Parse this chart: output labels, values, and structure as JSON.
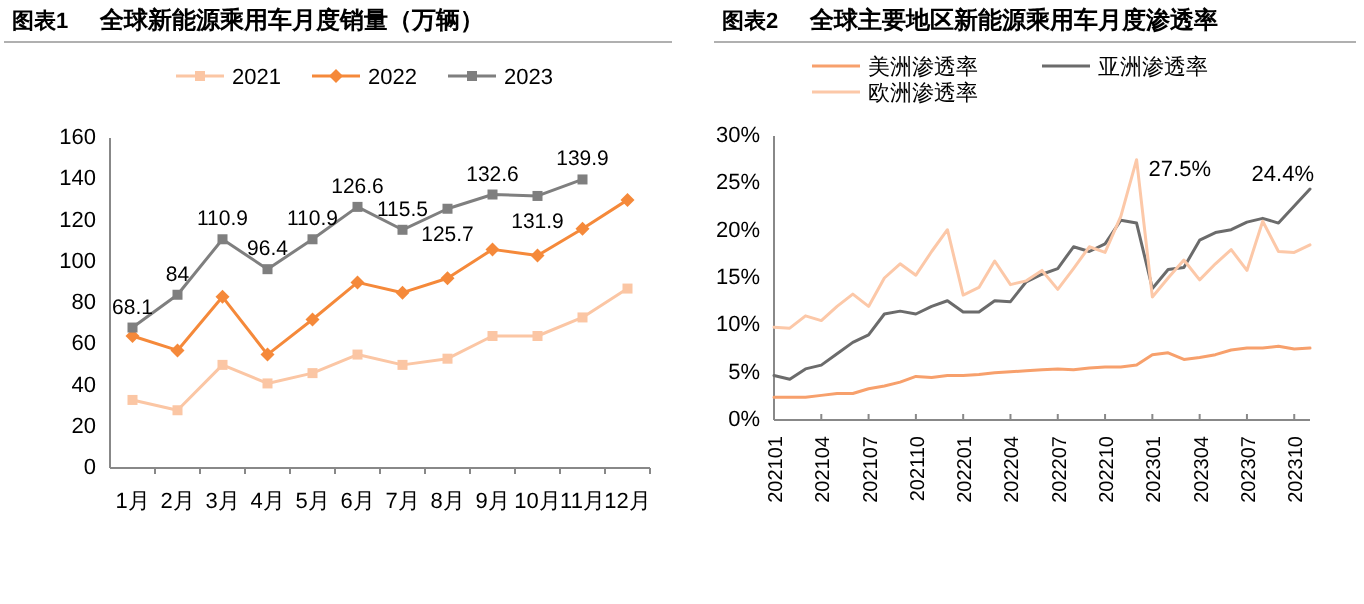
{
  "chart_data": [
    {
      "type": "line",
      "title": "全球新能源乘用车月度销量（万辆）",
      "annotations": [
        "图表1"
      ],
      "categories": [
        "1月",
        "2月",
        "3月",
        "4月",
        "5月",
        "6月",
        "7月",
        "8月",
        "9月",
        "10月",
        "11月",
        "12月"
      ],
      "ylim": [
        0,
        160
      ],
      "yticks": [
        0,
        20,
        40,
        60,
        80,
        100,
        120,
        140,
        160
      ],
      "legend": "top",
      "grid": false,
      "series": [
        {
          "name": "2021",
          "color": "#fbc6a4",
          "marker": "square",
          "values": [
            33,
            28,
            50,
            41,
            46,
            55,
            50,
            53,
            64,
            64,
            73,
            87
          ]
        },
        {
          "name": "2022",
          "color": "#f5893a",
          "marker": "diamond",
          "values": [
            64,
            57,
            83,
            55,
            72,
            90,
            85,
            92,
            106,
            103,
            116,
            130
          ]
        },
        {
          "name": "2023",
          "color": "#7f7f7f",
          "marker": "square",
          "values": [
            68.1,
            84,
            110.9,
            96.4,
            110.9,
            126.6,
            115.5,
            125.7,
            132.6,
            131.9,
            139.9,
            null
          ],
          "value_labels": [
            "68.1",
            "84",
            "110.9",
            "96.4",
            "110.9",
            "126.6",
            "115.5",
            "125.7",
            "132.6",
            "131.9",
            "139.9",
            null
          ]
        }
      ]
    },
    {
      "type": "line",
      "title": "全球主要地区新能源乘用车月度渗透率",
      "annotations": [
        "图表2",
        "27.5%",
        "24.4%"
      ],
      "categories": [
        "202101",
        null,
        null,
        "202104",
        null,
        null,
        "202107",
        null,
        null,
        "202110",
        null,
        null,
        "202201",
        null,
        null,
        "202204",
        null,
        null,
        "202207",
        null,
        null,
        "202210",
        null,
        null,
        "202301",
        null,
        null,
        "202304",
        null,
        null,
        "202307",
        null,
        null,
        "202310",
        null
      ],
      "ylim": [
        0,
        30
      ],
      "yticks": [
        {
          "value": 0,
          "label": "0%"
        },
        {
          "value": 5,
          "label": "5%"
        },
        {
          "value": 10,
          "label": "10%"
        },
        {
          "value": 15,
          "label": "15%"
        },
        {
          "value": 20,
          "label": "20%"
        },
        {
          "value": 25,
          "label": "25%"
        },
        {
          "value": 30,
          "label": "30%"
        }
      ],
      "legend": "top",
      "grid": false,
      "marker": "none",
      "series": [
        {
          "name": "美洲渗透率",
          "color": "#f7a06c",
          "values": [
            2.4,
            2.4,
            2.4,
            2.6,
            2.8,
            2.8,
            3.3,
            3.6,
            4.0,
            4.6,
            4.5,
            4.7,
            4.7,
            4.8,
            5.0,
            5.1,
            5.2,
            5.3,
            5.4,
            5.3,
            5.5,
            5.6,
            5.6,
            5.8,
            6.9,
            7.1,
            6.4,
            6.6,
            6.9,
            7.4,
            7.6,
            7.6,
            7.8,
            7.5,
            7.6
          ]
        },
        {
          "name": "亚洲渗透率",
          "color": "#6b6b6b",
          "values": [
            4.7,
            4.3,
            5.4,
            5.8,
            7.0,
            8.2,
            9.0,
            11.2,
            11.5,
            11.2,
            12.0,
            12.6,
            11.4,
            11.4,
            12.6,
            12.5,
            14.6,
            15.4,
            16.0,
            18.3,
            17.8,
            18.6,
            21.1,
            20.8,
            13.9,
            15.9,
            16.1,
            19.0,
            19.8,
            20.1,
            20.9,
            21.3,
            20.8,
            22.6,
            24.4
          ]
        },
        {
          "name": "欧洲渗透率",
          "color": "#fcc8a8",
          "values": [
            9.8,
            9.7,
            11.0,
            10.5,
            12.0,
            13.3,
            12.0,
            15.0,
            16.5,
            15.3,
            17.8,
            20.1,
            13.2,
            14.0,
            16.8,
            14.3,
            14.7,
            15.8,
            13.8,
            16.0,
            18.3,
            17.7,
            21.5,
            27.5,
            13.0,
            15.0,
            16.9,
            14.8,
            16.5,
            18.0,
            15.8,
            21.0,
            17.8,
            17.7,
            18.5
          ]
        }
      ]
    }
  ]
}
